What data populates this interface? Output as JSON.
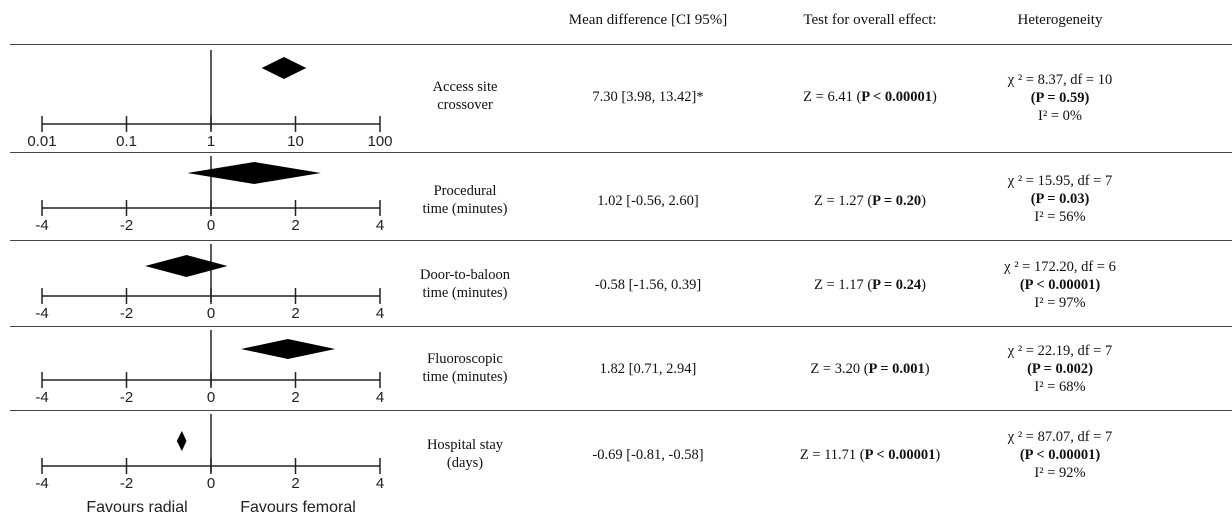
{
  "headers": {
    "mean_difference": "Mean difference [CI 95%]",
    "overall_effect": "Test for overall effect:",
    "heterogeneity": "Heterogeneity"
  },
  "rows": [
    {
      "label_lines": [
        "Access site",
        "crossover"
      ],
      "mean_difference": "7.30 [3.98, 13.42]*",
      "z_text": "Z = 6.41 (",
      "p_text": "P < 0.00001",
      "z_close": ")",
      "het_line1": "χ ² = 8.37, df = 10",
      "het_line2": "(P = 0.59)",
      "het_line3": "I² = 0%"
    },
    {
      "label_lines": [
        "Procedural",
        "time (minutes)"
      ],
      "mean_difference": "1.02 [-0.56, 2.60]",
      "z_text": "Z = 1.27 (",
      "p_text": "P = 0.20",
      "z_close": ")",
      "het_line1": "χ ² = 15.95, df = 7",
      "het_line2": "(P = 0.03)",
      "het_line3": "I² = 56%"
    },
    {
      "label_lines": [
        "Door-to-baloon",
        "time (minutes)"
      ],
      "mean_difference": "-0.58 [-1.56, 0.39]",
      "z_text": "Z = 1.17 (",
      "p_text": "P = 0.24",
      "z_close": ")",
      "het_line1": "χ ² = 172.20, df = 6",
      "het_line2": "(P < 0.00001)",
      "het_line3": "I² = 97%"
    },
    {
      "label_lines": [
        "Fluoroscopic",
        "time (minutes)"
      ],
      "mean_difference": "1.82 [0.71, 2.94]",
      "z_text": "Z = 3.20 (",
      "p_text": "P = 0.001",
      "z_close": ")",
      "het_line1": "χ ² = 22.19, df = 7",
      "het_line2": "(P = 0.002)",
      "het_line3": "I² = 68%"
    },
    {
      "label_lines": [
        "Hospital stay",
        "(days)"
      ],
      "mean_difference": "-0.69 [-0.81, -0.58]",
      "z_text": "Z = 11.71 (",
      "p_text": "P < 0.00001",
      "z_close": ")",
      "het_line1": "χ ² = 87.07, df = 7",
      "het_line2": "(P < 0.00001)",
      "het_line3": "I² = 92%"
    }
  ],
  "footer": {
    "favours_left": "Favours radial",
    "favours_right": "Favours femoral"
  },
  "chart_data": [
    {
      "type": "forest",
      "scale": "log",
      "xlim": [
        0.01,
        100
      ],
      "ticks": [
        0.01,
        0.1,
        1,
        10,
        100
      ],
      "tick_labels": [
        "0.01",
        "0.1",
        "1",
        "10",
        "100"
      ],
      "estimate": 7.3,
      "ci": [
        3.98,
        13.42
      ]
    },
    {
      "type": "forest",
      "scale": "linear",
      "xlim": [
        -4,
        4
      ],
      "ticks": [
        -4,
        -2,
        0,
        2,
        4
      ],
      "tick_labels": [
        "-4",
        "-2",
        "0",
        "2",
        "4"
      ],
      "estimate": 1.02,
      "ci": [
        -0.56,
        2.6
      ]
    },
    {
      "type": "forest",
      "scale": "linear",
      "xlim": [
        -4,
        4
      ],
      "ticks": [
        -4,
        -2,
        0,
        2,
        4
      ],
      "tick_labels": [
        "-4",
        "-2",
        "0",
        "2",
        "4"
      ],
      "estimate": -0.58,
      "ci": [
        -1.56,
        0.39
      ]
    },
    {
      "type": "forest",
      "scale": "linear",
      "xlim": [
        -4,
        4
      ],
      "ticks": [
        -4,
        -2,
        0,
        2,
        4
      ],
      "tick_labels": [
        "-4",
        "-2",
        "0",
        "2",
        "4"
      ],
      "estimate": 1.82,
      "ci": [
        0.71,
        2.94
      ]
    },
    {
      "type": "forest",
      "scale": "linear",
      "xlim": [
        -4,
        4
      ],
      "ticks": [
        -4,
        -2,
        0,
        2,
        4
      ],
      "tick_labels": [
        "-4",
        "-2",
        "0",
        "2",
        "4"
      ],
      "estimate": -0.69,
      "ci": [
        -0.81,
        -0.58
      ]
    }
  ]
}
